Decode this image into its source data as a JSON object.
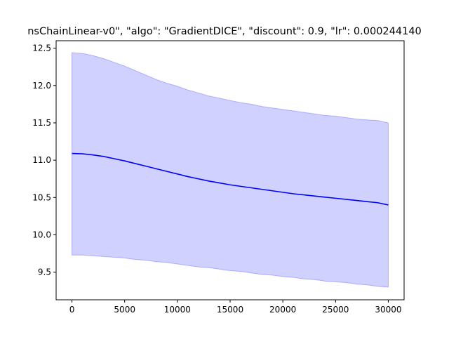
{
  "chart_data": {
    "type": "line",
    "title": "nsChainLinear-v0\", \"algo\": \"GradientDICE\", \"discount\": 0.9, \"lr\": 0.000244140",
    "xlabel": "",
    "ylabel": "",
    "xlim": [
      -1500,
      31500
    ],
    "ylim": [
      9.13,
      12.6
    ],
    "xticks": [
      0,
      5000,
      10000,
      15000,
      20000,
      25000,
      30000
    ],
    "yticks": [
      9.5,
      10.0,
      10.5,
      11.0,
      11.5,
      12.0,
      12.5
    ],
    "grid": false,
    "legend": "none",
    "colors": {
      "line": "#0000ff",
      "band_fill": "#0000ff",
      "band_fill_opacity": 0.18,
      "band_edge_opacity": 0.25
    },
    "series": [
      {
        "x": [
          0,
          1000,
          2000,
          3000,
          4000,
          5000,
          6000,
          7000,
          8000,
          9000,
          10000,
          11000,
          12000,
          13000,
          14000,
          15000,
          16000,
          17000,
          18000,
          19000,
          20000,
          21000,
          22000,
          23000,
          24000,
          25000,
          26000,
          27000,
          28000,
          29000,
          30000
        ],
        "mean": [
          11.09,
          11.085,
          11.07,
          11.05,
          11.02,
          10.99,
          10.955,
          10.92,
          10.885,
          10.85,
          10.815,
          10.78,
          10.75,
          10.72,
          10.695,
          10.67,
          10.65,
          10.63,
          10.61,
          10.59,
          10.57,
          10.55,
          10.535,
          10.52,
          10.505,
          10.49,
          10.475,
          10.46,
          10.445,
          10.43,
          10.4
        ],
        "upper": [
          12.44,
          12.43,
          12.4,
          12.36,
          12.31,
          12.26,
          12.2,
          12.14,
          12.08,
          12.03,
          11.99,
          11.94,
          11.9,
          11.86,
          11.83,
          11.8,
          11.77,
          11.75,
          11.72,
          11.7,
          11.68,
          11.66,
          11.64,
          11.62,
          11.6,
          11.59,
          11.57,
          11.55,
          11.54,
          11.53,
          11.5
        ],
        "lower": [
          9.73,
          9.73,
          9.72,
          9.71,
          9.7,
          9.69,
          9.67,
          9.66,
          9.64,
          9.63,
          9.61,
          9.59,
          9.57,
          9.56,
          9.54,
          9.52,
          9.51,
          9.49,
          9.47,
          9.46,
          9.44,
          9.43,
          9.41,
          9.4,
          9.38,
          9.37,
          9.36,
          9.34,
          9.33,
          9.31,
          9.3
        ]
      }
    ]
  }
}
